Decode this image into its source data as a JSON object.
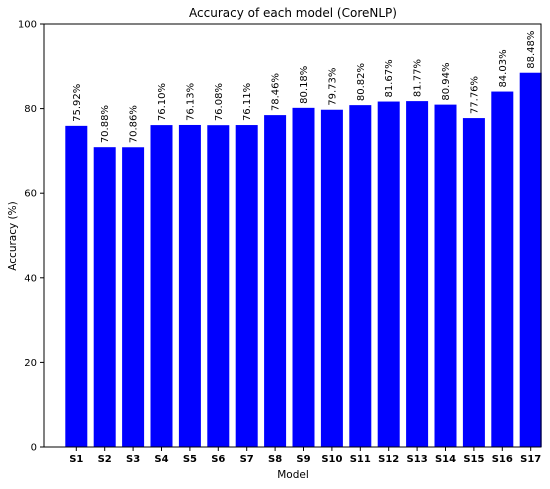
{
  "chart_data": {
    "type": "bar",
    "title": "Accuracy of each model (CoreNLP)",
    "xlabel": "Model",
    "ylabel": "Accuracy (%)",
    "ylim": [
      0,
      100
    ],
    "yticks": [
      0,
      20,
      40,
      60,
      80,
      100
    ],
    "categories": [
      "S1",
      "S2",
      "S3",
      "S4",
      "S5",
      "S6",
      "S7",
      "S8",
      "S9",
      "S10",
      "S11",
      "S12",
      "S13",
      "S14",
      "S15",
      "S16",
      "S17"
    ],
    "values": [
      75.92,
      70.88,
      70.86,
      76.1,
      76.13,
      76.08,
      76.11,
      78.46,
      80.18,
      79.73,
      80.82,
      81.67,
      81.77,
      80.94,
      77.76,
      84.03,
      88.48
    ],
    "value_labels": [
      "75.92%",
      "70.88%",
      "70.86%",
      "76.10%",
      "76.13%",
      "76.08%",
      "76.11%",
      "78.46%",
      "80.18%",
      "79.73%",
      "80.82%",
      "81.67%",
      "81.77%",
      "80.94%",
      "77.76%",
      "84.03%",
      "88.48%"
    ],
    "bar_color": "#0000ff",
    "grid": false,
    "legend": "none"
  }
}
